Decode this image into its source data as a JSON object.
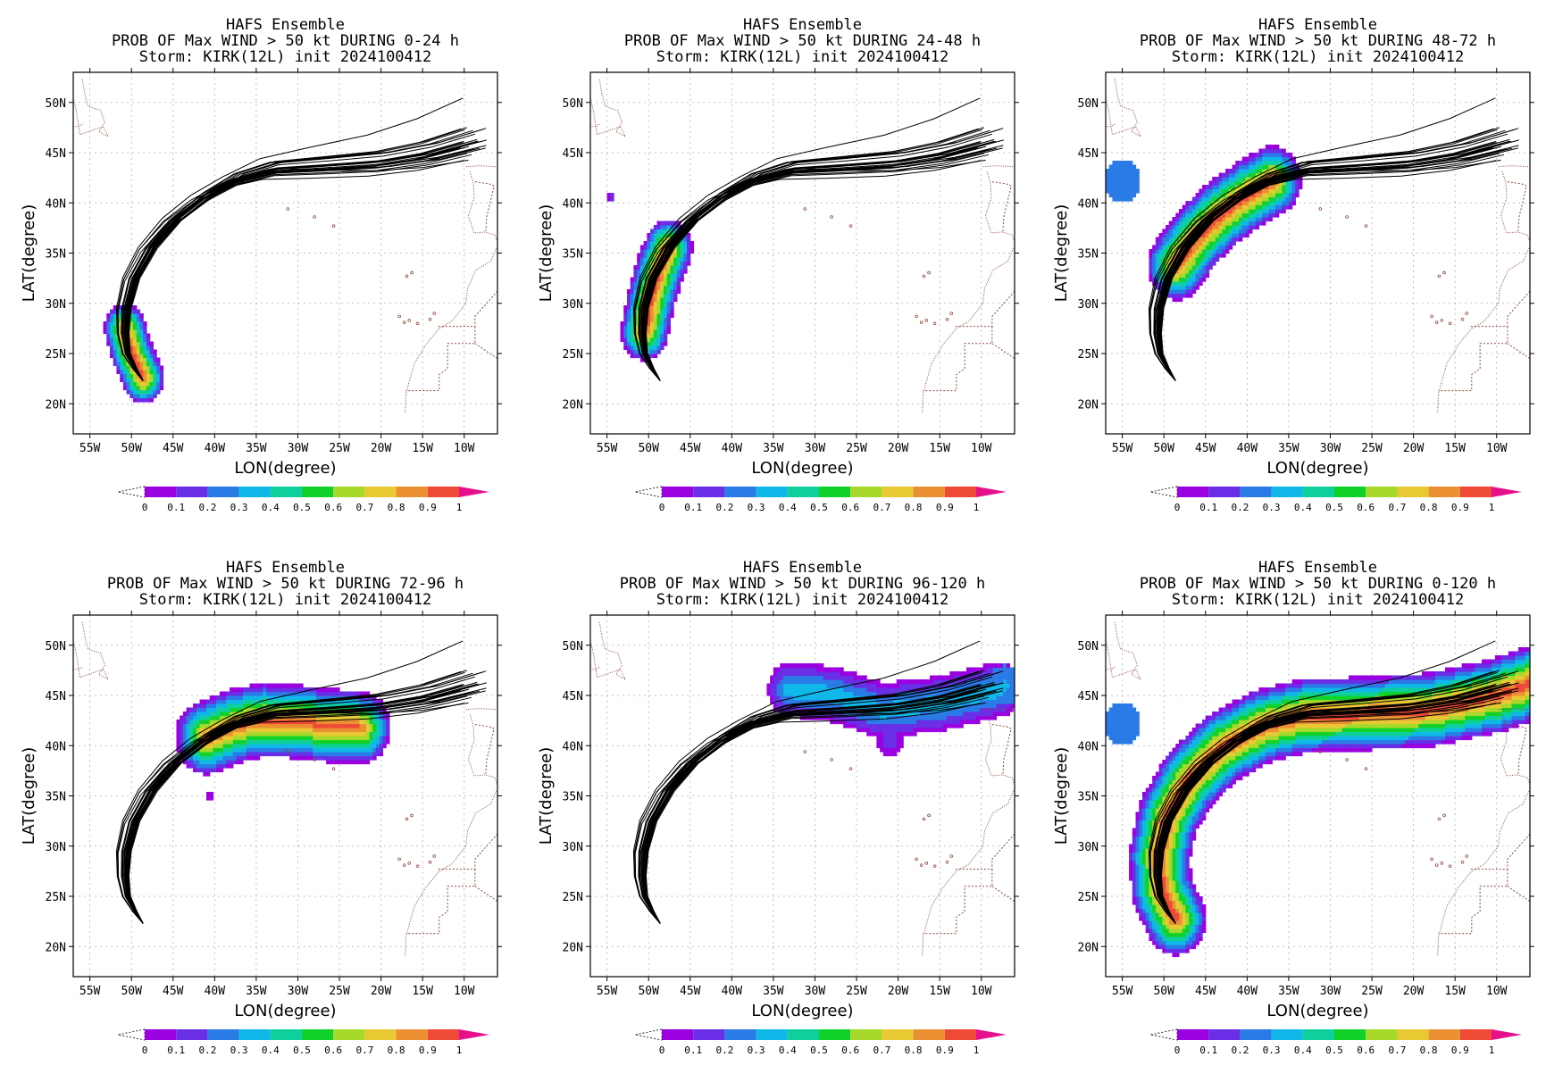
{
  "figure": {
    "colorbar": {
      "ticks": [
        "0",
        "0.1",
        "0.2",
        "0.3",
        "0.4",
        "0.5",
        "0.6",
        "0.7",
        "0.8",
        "0.9",
        "1"
      ],
      "colors": [
        "#9b00e0",
        "#6a2ee6",
        "#2a7be6",
        "#0fb8e8",
        "#0fcf9c",
        "#10d22a",
        "#a6d92b",
        "#e9c933",
        "#ea9033",
        "#ef4a36"
      ],
      "over_color": "#e7108c",
      "under_color": "#ffffff"
    },
    "track_color": "#000000",
    "coast_color": "#8c4a3a"
  },
  "chart_data": [
    {
      "type": "heatmap",
      "title": [
        "HAFS Ensemble",
        "PROB OF Max WIND > 50 kt DURING  0-24 h",
        "Storm: KIRK(12L) init 2024100412"
      ],
      "xlabel": "LON(degree)",
      "ylabel": "LAT(degree)",
      "xlim": [
        -57,
        -6
      ],
      "ylim": [
        17,
        53
      ],
      "xticks": [
        "55W",
        "50W",
        "45W",
        "40W",
        "35W",
        "30W",
        "25W",
        "20W",
        "15W",
        "10W"
      ],
      "yticks": [
        "20N",
        "25N",
        "30N",
        "35N",
        "40N",
        "45N",
        "50N"
      ],
      "grid": true,
      "variable": "probability",
      "vmin": 0,
      "vmax": 1,
      "prob_path": [
        [
          -50.8,
          27.5
        ],
        [
          -50.0,
          25.2
        ],
        [
          -48.6,
          22.6
        ]
      ],
      "prob_width": 2.6,
      "prob_peak": 1.0,
      "blobs": []
    },
    {
      "type": "heatmap",
      "title": [
        "HAFS Ensemble",
        "PROB OF Max WIND > 50 kt DURING 24-48 h",
        "Storm: KIRK(12L) init 2024100412"
      ],
      "xlabel": "LON(degree)",
      "ylabel": "LAT(degree)",
      "xlim": [
        -57,
        -6
      ],
      "ylim": [
        17,
        53
      ],
      "xticks": [
        "55W",
        "50W",
        "45W",
        "40W",
        "35W",
        "30W",
        "25W",
        "20W",
        "15W",
        "10W"
      ],
      "yticks": [
        "20N",
        "25N",
        "30N",
        "35N",
        "40N",
        "45N",
        "50N"
      ],
      "grid": true,
      "variable": "probability",
      "vmin": 0,
      "vmax": 1,
      "prob_path": [
        [
          -50.5,
          27.2
        ],
        [
          -49.7,
          30.5
        ],
        [
          -48.6,
          33.6
        ],
        [
          -47.6,
          35.5
        ]
      ],
      "prob_width": 3.0,
      "prob_peak": 1.0,
      "blobs": [
        {
          "lon": -54.5,
          "lat": 40.6,
          "r": 0.5,
          "p": 0.12
        }
      ]
    },
    {
      "type": "heatmap",
      "title": [
        "HAFS Ensemble",
        "PROB OF Max WIND > 50 kt DURING 48-72 h",
        "Storm: KIRK(12L) init 2024100412"
      ],
      "xlabel": "LON(degree)",
      "ylabel": "LAT(degree)",
      "xlim": [
        -57,
        -6
      ],
      "ylim": [
        17,
        53
      ],
      "xticks": [
        "55W",
        "50W",
        "45W",
        "40W",
        "35W",
        "30W",
        "25W",
        "20W",
        "15W",
        "10W"
      ],
      "yticks": [
        "20N",
        "25N",
        "30N",
        "35N",
        "40N",
        "45N",
        "50N"
      ],
      "grid": true,
      "variable": "probability",
      "vmin": 0,
      "vmax": 1,
      "prob_path": [
        [
          -48.5,
          33.8
        ],
        [
          -46.0,
          36.6
        ],
        [
          -43.0,
          39.0
        ],
        [
          -39.6,
          41.0
        ],
        [
          -37.0,
          42.2
        ]
      ],
      "prob_width": 3.6,
      "prob_peak": 1.0,
      "blobs": [
        {
          "lon": -55.0,
          "lat": 42.2,
          "r": 2.2,
          "p": 0.3
        }
      ]
    },
    {
      "type": "heatmap",
      "title": [
        "HAFS Ensemble",
        "PROB OF Max WIND > 50 kt DURING 72-96 h",
        "Storm: KIRK(12L) init 2024100412"
      ],
      "xlabel": "LON(degree)",
      "ylabel": "LAT(degree)",
      "xlim": [
        -57,
        -6
      ],
      "ylim": [
        17,
        53
      ],
      "xticks": [
        "55W",
        "50W",
        "45W",
        "40W",
        "35W",
        "30W",
        "25W",
        "20W",
        "15W",
        "10W"
      ],
      "yticks": [
        "20N",
        "25N",
        "30N",
        "35N",
        "40N",
        "45N",
        "50N"
      ],
      "grid": true,
      "variable": "probability",
      "vmin": 0,
      "vmax": 1,
      "prob_path": [
        [
          -41.0,
          40.8
        ],
        [
          -37.5,
          42.0
        ],
        [
          -34.0,
          42.6
        ],
        [
          -30.0,
          42.4
        ],
        [
          -26.0,
          42.0
        ],
        [
          -22.5,
          41.8
        ]
      ],
      "prob_width": 3.8,
      "prob_peak": 0.95,
      "blobs": [
        {
          "lon": -43.5,
          "lat": 42.2,
          "r": 1.0,
          "p": 0.12
        },
        {
          "lon": -40.5,
          "lat": 35.0,
          "r": 0.4,
          "p": 0.12
        }
      ]
    },
    {
      "type": "heatmap",
      "title": [
        "HAFS Ensemble",
        "PROB OF Max WIND > 50 kt DURING 96-120 h",
        "Storm: KIRK(12L) init 2024100412"
      ],
      "xlabel": "LON(degree)",
      "ylabel": "LAT(degree)",
      "xlim": [
        -57,
        -6
      ],
      "ylim": [
        17,
        53
      ],
      "xticks": [
        "55W",
        "50W",
        "45W",
        "40W",
        "35W",
        "30W",
        "25W",
        "20W",
        "15W",
        "10W"
      ],
      "yticks": [
        "20N",
        "25N",
        "30N",
        "35N",
        "40N",
        "45N",
        "50N"
      ],
      "grid": true,
      "variable": "probability",
      "vmin": 0,
      "vmax": 1,
      "prob_path": [
        [
          -33.0,
          45.6
        ],
        [
          -28.0,
          45.2
        ],
        [
          -22.0,
          43.5
        ],
        [
          -15.0,
          44.2
        ],
        [
          -8.0,
          45.6
        ]
      ],
      "prob_width": 3.0,
      "prob_peak": 0.4,
      "blobs": [
        {
          "lon": -7.2,
          "lat": 46.0,
          "r": 2.0,
          "p": 0.32
        },
        {
          "lon": -21.0,
          "lat": 40.6,
          "r": 1.6,
          "p": 0.12
        }
      ]
    },
    {
      "type": "heatmap",
      "title": [
        "HAFS Ensemble",
        "PROB OF Max WIND > 50 kt DURING 0-120 h",
        "Storm: KIRK(12L) init 2024100412"
      ],
      "xlabel": "LON(degree)",
      "ylabel": "LAT(degree)",
      "xlim": [
        -57,
        -6
      ],
      "ylim": [
        17,
        53
      ],
      "xticks": [
        "55W",
        "50W",
        "45W",
        "40W",
        "35W",
        "30W",
        "25W",
        "20W",
        "15W",
        "10W"
      ],
      "yticks": [
        "20N",
        "25N",
        "30N",
        "35N",
        "40N",
        "45N",
        "50N"
      ],
      "grid": true,
      "variable": "probability",
      "vmin": 0,
      "vmax": 1,
      "prob_path": [
        [
          -48.6,
          22.8
        ],
        [
          -50.2,
          25.5
        ],
        [
          -50.6,
          29.0
        ],
        [
          -49.5,
          33.0
        ],
        [
          -47.0,
          36.6
        ],
        [
          -43.0,
          39.8
        ],
        [
          -38.0,
          42.0
        ],
        [
          -33.0,
          43.0
        ],
        [
          -26.0,
          43.2
        ],
        [
          -18.0,
          43.6
        ],
        [
          -10.0,
          45.0
        ],
        [
          -6.0,
          46.2
        ]
      ],
      "prob_width": 3.8,
      "prob_peak": 1.0,
      "blobs": [
        {
          "lon": -55.0,
          "lat": 42.2,
          "r": 2.2,
          "p": 0.3
        },
        {
          "lon": -7.2,
          "lat": 46.0,
          "r": 2.0,
          "p": 0.3
        }
      ]
    }
  ]
}
